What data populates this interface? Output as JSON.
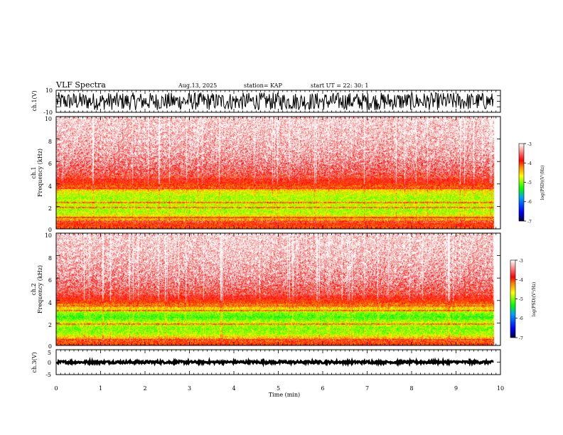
{
  "header": {
    "title": "VLF Spectra",
    "date": "Aug.13, 2025",
    "station": "station= KAP",
    "start_ut": "start  UT  =   22: 30: 1"
  },
  "colors": {
    "background": "#ffffff",
    "waveform": "#000000",
    "spec_white": "#ffffff",
    "spec_red": "#ff0000",
    "spec_yellow": "#ffff00",
    "spec_green": "#00ff00",
    "spec_blue": "#0000ff",
    "spec_navy": "#00003c"
  },
  "chart_data": [
    {
      "type": "line",
      "name": "ch1-waveform",
      "ylabel": "ch.1(V)",
      "ylim": [
        -10,
        10
      ],
      "yticks": [
        -10,
        10
      ],
      "ytick_labels": [
        "-10",
        "10"
      ],
      "xlim": [
        0,
        10
      ],
      "signal_x_end": 9.85,
      "amplitude_range": [
        -8,
        8
      ],
      "description_hidden": false
    },
    {
      "type": "heatmap",
      "name": "ch1-spectrogram",
      "ylabel_lines": [
        "ch.1",
        "Frequency  (kHz)"
      ],
      "ylim": [
        0,
        10
      ],
      "yticks": [
        0,
        2,
        4,
        6,
        8,
        10
      ],
      "ytick_labels": [
        "0",
        "2",
        "4",
        "6",
        "8",
        "10"
      ],
      "xlim": [
        0,
        10
      ],
      "signal_x_end": 9.85,
      "freq_profile_khz": [
        0.0,
        0.4,
        1.0,
        1.5,
        2.2,
        2.8,
        3.3,
        3.7,
        4.2,
        5.0,
        6.5,
        8.0,
        10.0
      ],
      "freq_profile_level": [
        -4.1,
        -4.0,
        -4.6,
        -4.9,
        -4.8,
        -4.9,
        -4.7,
        -4.2,
        -3.9,
        -3.6,
        -3.3,
        -3.15,
        -3.05
      ],
      "bands_khz": [
        0.6,
        1.0,
        1.9,
        2.3,
        3.6
      ],
      "colorbar": {
        "label": "log(PSD)(V²/Hz)",
        "range": [
          -7,
          -3
        ],
        "ticks": [
          -7,
          -6,
          -5,
          -4,
          -3
        ],
        "tick_labels": [
          "-7",
          "-6",
          "-5",
          "-4",
          "-3"
        ]
      }
    },
    {
      "type": "heatmap",
      "name": "ch2-spectrogram",
      "ylabel_lines": [
        "ch.2",
        "Frequency  (kHz)"
      ],
      "ylim": [
        0,
        10
      ],
      "yticks": [
        0,
        2,
        4,
        6,
        8,
        10
      ],
      "ytick_labels": [
        "0",
        "2",
        "4",
        "6",
        "8",
        "10"
      ],
      "xlim": [
        0,
        10
      ],
      "signal_x_end": 9.85,
      "freq_profile_khz": [
        0.0,
        0.4,
        1.0,
        1.5,
        2.0,
        2.5,
        3.0,
        3.4,
        3.8,
        4.5,
        6.0,
        8.0,
        10.0
      ],
      "freq_profile_level": [
        -4.0,
        -4.2,
        -4.9,
        -5.0,
        -4.8,
        -5.2,
        -4.9,
        -4.5,
        -4.1,
        -3.7,
        -3.35,
        -3.15,
        -3.05
      ],
      "bands_khz": [
        0.5,
        1.9,
        3.1,
        3.5
      ],
      "colorbar": {
        "label": "log(PSD)(V²/Hz)",
        "range": [
          -7,
          -3
        ],
        "ticks": [
          -7,
          -6,
          -5,
          -4,
          -3
        ],
        "tick_labels": [
          "-7",
          "-6",
          "-5",
          "-4",
          "-3"
        ]
      }
    },
    {
      "type": "line",
      "name": "ch3-waveform",
      "ylabel": "ch.3(V)",
      "ylim": [
        -5,
        5
      ],
      "yticks": [
        -5,
        0,
        5
      ],
      "ytick_labels": [
        "-5",
        "0",
        "5"
      ],
      "xlim": [
        0,
        10
      ],
      "signal_x_end": 9.85,
      "signal_level": 0,
      "amplitude_range": [
        -0.5,
        0.5
      ]
    }
  ],
  "xaxis": {
    "label": "Time  (min)",
    "range": [
      0,
      10
    ],
    "ticks": [
      0,
      1,
      2,
      3,
      4,
      5,
      6,
      7,
      8,
      9,
      10
    ],
    "tick_labels": [
      "0",
      "1",
      "2",
      "3",
      "4",
      "5",
      "6",
      "7",
      "8",
      "9",
      "10"
    ]
  }
}
